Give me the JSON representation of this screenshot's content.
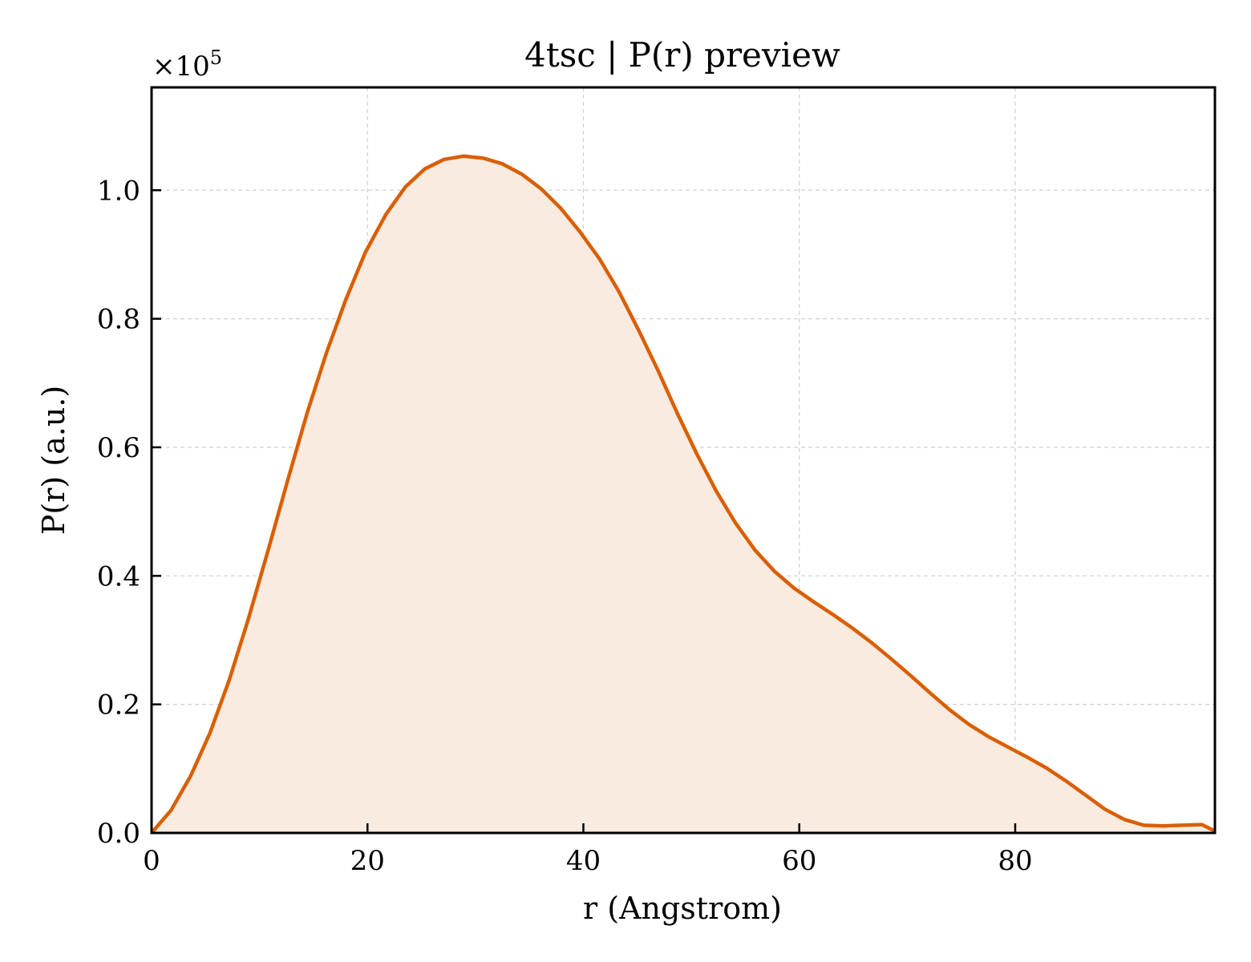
{
  "chart_data": {
    "type": "area",
    "title": "4tsc | P(r) preview",
    "xlabel": "r (Angstrom)",
    "ylabel": "P(r) (a.u.)",
    "y_multiplier": "×10",
    "y_multiplier_exponent": "5",
    "xlim": [
      0,
      98.5
    ],
    "ylim": [
      0,
      1.16
    ],
    "xticks": [
      0,
      20,
      40,
      60,
      80
    ],
    "xtick_labels": [
      "0",
      "20",
      "40",
      "60",
      "80"
    ],
    "yticks": [
      0.0,
      0.2,
      0.4,
      0.6,
      0.8,
      1.0
    ],
    "ytick_labels": [
      "0.0",
      "0.2",
      "0.4",
      "0.6",
      "0.8",
      "1.0"
    ],
    "grid": true,
    "colors": {
      "line": "#d95f02",
      "fill": "#f9ebe0"
    },
    "series": [
      {
        "x": [
          0,
          1.8,
          3.6,
          5.4,
          7.2,
          9.0,
          10.8,
          12.6,
          14.4,
          16.2,
          18.0,
          19.8,
          21.7,
          23.5,
          25.3,
          27.1,
          28.9,
          30.7,
          32.5,
          34.3,
          36.1,
          37.9,
          39.7,
          41.5,
          43.3,
          45.1,
          46.9,
          48.7,
          50.5,
          52.3,
          54.1,
          55.9,
          57.7,
          59.5,
          61.3,
          63.1,
          64.9,
          66.7,
          68.5,
          70.3,
          72.1,
          73.9,
          75.7,
          77.5,
          79.3,
          81.1,
          82.9,
          84.7,
          86.5,
          88.3,
          90.1,
          91.9,
          93.7,
          95.5,
          97.3,
          98.5
        ],
        "y": [
          0.0,
          0.035,
          0.088,
          0.155,
          0.238,
          0.335,
          0.44,
          0.548,
          0.653,
          0.747,
          0.83,
          0.903,
          0.962,
          1.005,
          1.033,
          1.048,
          1.053,
          1.05,
          1.041,
          1.025,
          1.002,
          0.972,
          0.935,
          0.893,
          0.842,
          0.783,
          0.72,
          0.653,
          0.59,
          0.532,
          0.482,
          0.44,
          0.407,
          0.381,
          0.36,
          0.34,
          0.319,
          0.296,
          0.271,
          0.245,
          0.218,
          0.192,
          0.169,
          0.15,
          0.134,
          0.118,
          0.101,
          0.081,
          0.059,
          0.037,
          0.021,
          0.012,
          0.011,
          0.012,
          0.013,
          0.003
        ]
      }
    ]
  }
}
